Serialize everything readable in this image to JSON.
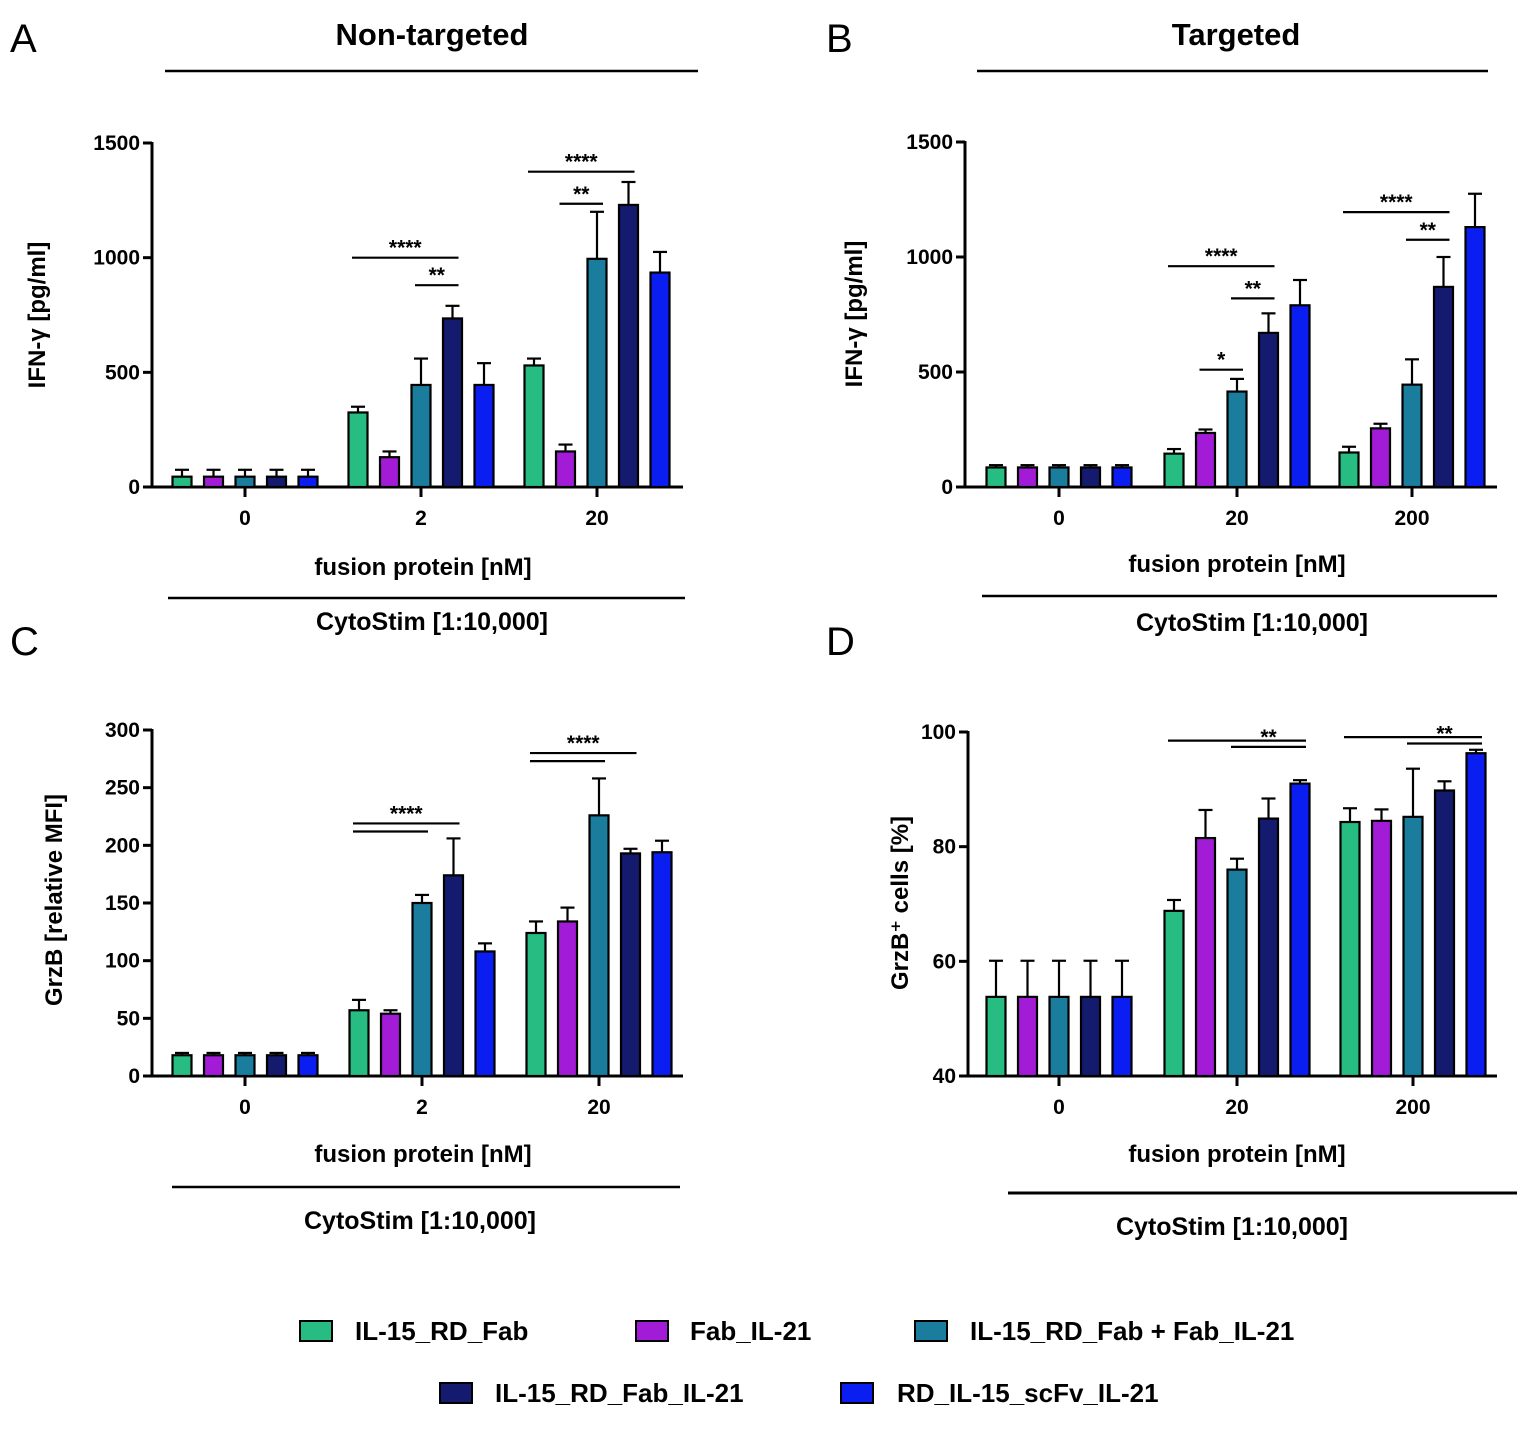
{
  "legend": [
    {
      "name": "IL-15_RD_Fab",
      "color": "#27bd82"
    },
    {
      "name": "Fab_IL-21",
      "color": "#a21bd6"
    },
    {
      "name": "IL-15_RD_Fab + Fab_IL-21",
      "color": "#1a7d9e"
    },
    {
      "name": "IL-15_RD_Fab_IL-21",
      "color": "#141a6d"
    },
    {
      "name": "RD_IL-15_scFv_IL-21",
      "color": "#0a1ef2"
    }
  ],
  "chart_data": [
    {
      "panel": "A",
      "type": "bar",
      "title": "Non-targeted",
      "xlabel": "fusion protein [nM]",
      "ylabel": "IFN-γ [pg/ml]",
      "stimulation": "CytoStim [1:10,000]",
      "categories": [
        "0",
        "2",
        "20"
      ],
      "ylim": [
        0,
        1500
      ],
      "yticks": [
        "0",
        "500",
        "1000",
        "1500"
      ],
      "series": [
        {
          "name": "IL-15_RD_Fab",
          "values": [
            45,
            325,
            530
          ],
          "errors": [
            30,
            25,
            30
          ]
        },
        {
          "name": "Fab_IL-21",
          "values": [
            45,
            130,
            155
          ],
          "errors": [
            30,
            25,
            30
          ]
        },
        {
          "name": "IL-15_RD_Fab + Fab_IL-21",
          "values": [
            45,
            445,
            995
          ],
          "errors": [
            30,
            115,
            205
          ]
        },
        {
          "name": "IL-15_RD_Fab_IL-21",
          "values": [
            45,
            735,
            1230
          ],
          "errors": [
            30,
            55,
            100
          ]
        },
        {
          "name": "RD_IL-15_scFv_IL-21",
          "values": [
            45,
            445,
            935
          ],
          "errors": [
            30,
            95,
            90
          ]
        }
      ],
      "significance": [
        {
          "group": 1,
          "from": 0,
          "to": 3,
          "y": 1000,
          "label": "****"
        },
        {
          "group": 1,
          "from": 2,
          "to": 3,
          "y": 880,
          "label": "**"
        },
        {
          "group": 2,
          "from": 0,
          "to": 3,
          "y": 1375,
          "label": "****"
        },
        {
          "group": 2,
          "from": 1,
          "to": 2,
          "y": 1235,
          "label": "**"
        }
      ]
    },
    {
      "panel": "B",
      "type": "bar",
      "title": "Targeted",
      "xlabel": "fusion protein [nM]",
      "ylabel": "IFN-γ [pg/ml]",
      "stimulation": "CytoStim [1:10,000]",
      "categories": [
        "0",
        "20",
        "200"
      ],
      "ylim": [
        0,
        1500
      ],
      "yticks": [
        "0",
        "500",
        "1000",
        "1500"
      ],
      "series": [
        {
          "name": "IL-15_RD_Fab",
          "values": [
            85,
            145,
            150
          ],
          "errors": [
            10,
            20,
            25
          ]
        },
        {
          "name": "Fab_IL-21",
          "values": [
            85,
            235,
            255
          ],
          "errors": [
            10,
            15,
            20
          ]
        },
        {
          "name": "IL-15_RD_Fab + Fab_IL-21",
          "values": [
            85,
            415,
            445
          ],
          "errors": [
            10,
            55,
            110
          ]
        },
        {
          "name": "IL-15_RD_Fab_IL-21",
          "values": [
            85,
            670,
            870
          ],
          "errors": [
            10,
            85,
            130
          ]
        },
        {
          "name": "RD_IL-15_scFv_IL-21",
          "values": [
            85,
            790,
            1130
          ],
          "errors": [
            10,
            110,
            145
          ]
        }
      ],
      "significance": [
        {
          "group": 1,
          "from": 0,
          "to": 3,
          "y": 960,
          "label": "****"
        },
        {
          "group": 1,
          "from": 2,
          "to": 3,
          "y": 820,
          "label": "**"
        },
        {
          "group": 1,
          "from": 1,
          "to": 2,
          "y": 510,
          "label": "*"
        },
        {
          "group": 2,
          "from": 0,
          "to": 3,
          "y": 1195,
          "label": "****"
        },
        {
          "group": 2,
          "from": 2,
          "to": 3,
          "y": 1075,
          "label": "**"
        }
      ]
    },
    {
      "panel": "C",
      "type": "bar",
      "title": "",
      "xlabel": "fusion protein [nM]",
      "ylabel": "GrzB [relative MFI]",
      "stimulation": "CytoStim [1:10,000]",
      "categories": [
        "0",
        "2",
        "20"
      ],
      "ylim": [
        0,
        300
      ],
      "yticks": [
        "0",
        "50",
        "100",
        "150",
        "200",
        "250",
        "300"
      ],
      "series": [
        {
          "name": "IL-15_RD_Fab",
          "values": [
            18,
            57,
            124
          ],
          "errors": [
            2,
            9,
            10
          ]
        },
        {
          "name": "Fab_IL-21",
          "values": [
            18,
            54,
            134
          ],
          "errors": [
            2,
            3,
            12
          ]
        },
        {
          "name": "IL-15_RD_Fab + Fab_IL-21",
          "values": [
            18,
            150,
            226
          ],
          "errors": [
            2,
            7,
            32
          ]
        },
        {
          "name": "IL-15_RD_Fab_IL-21",
          "values": [
            18,
            174,
            193
          ],
          "errors": [
            2,
            32,
            4
          ]
        },
        {
          "name": "RD_IL-15_scFv_IL-21",
          "values": [
            18,
            108,
            194
          ],
          "errors": [
            2,
            7,
            10
          ]
        }
      ],
      "significance": [
        {
          "group": 1,
          "from": 0,
          "to": 3,
          "y": 219,
          "label": "****"
        },
        {
          "group": 1,
          "from": 0,
          "to": 2,
          "y": 212,
          "label": ""
        },
        {
          "group": 2,
          "from": 0,
          "to": 3,
          "y": 280,
          "label": "****"
        },
        {
          "group": 2,
          "from": 0,
          "to": 2,
          "y": 273,
          "label": ""
        }
      ]
    },
    {
      "panel": "D",
      "type": "bar",
      "title": "",
      "xlabel": "fusion protein [nM]",
      "ylabel": "GrzB⁺ cells [%]",
      "stimulation": "CytoStim [1:10,000]",
      "categories": [
        "0",
        "20",
        "200"
      ],
      "ylim": [
        40,
        100
      ],
      "yticks": [
        "40",
        "60",
        "80",
        "100"
      ],
      "series": [
        {
          "name": "IL-15_RD_Fab",
          "values": [
            53.8,
            68.8,
            84.3
          ],
          "errors": [
            6.3,
            1.9,
            2.4
          ]
        },
        {
          "name": "Fab_IL-21",
          "values": [
            53.8,
            81.5,
            84.5
          ],
          "errors": [
            6.3,
            4.9,
            2.0
          ]
        },
        {
          "name": "IL-15_RD_Fab + Fab_IL-21",
          "values": [
            53.8,
            76.0,
            85.2
          ],
          "errors": [
            6.3,
            1.9,
            8.4
          ]
        },
        {
          "name": "IL-15_RD_Fab_IL-21",
          "values": [
            53.8,
            84.9,
            89.8
          ],
          "errors": [
            6.3,
            3.5,
            1.6
          ]
        },
        {
          "name": "RD_IL-15_scFv_IL-21",
          "values": [
            53.8,
            91.0,
            96.3
          ],
          "errors": [
            6.3,
            0.6,
            0.6
          ]
        }
      ],
      "significance": [
        {
          "group": 1,
          "from": 0,
          "to": 4,
          "y": 98.5,
          "label": ""
        },
        {
          "group": 1,
          "from": 2,
          "to": 4,
          "y": 97.4,
          "label": "**"
        },
        {
          "group": 2,
          "from": 0,
          "to": 4,
          "y": 99.1,
          "label": ""
        },
        {
          "group": 2,
          "from": 2,
          "to": 4,
          "y": 98.0,
          "label": "**"
        }
      ]
    }
  ]
}
